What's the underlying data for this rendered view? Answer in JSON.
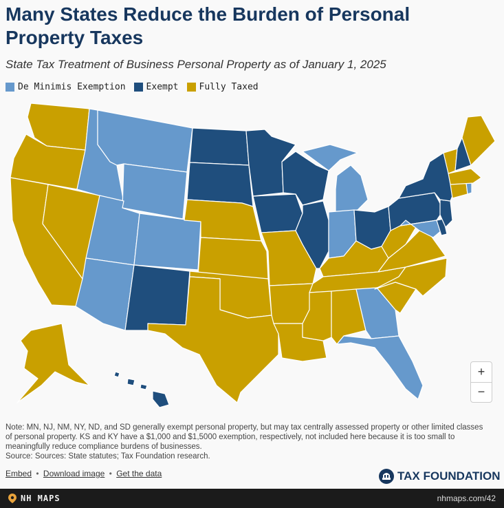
{
  "header": {
    "title": "Many States Reduce the Burden of Personal Property Taxes",
    "subtitle": "State Tax Treatment of Business Personal Property as of January 1, 2025"
  },
  "legend": [
    {
      "label": "De Minimis Exemption",
      "color": "#6699cc"
    },
    {
      "label": "Exempt",
      "color": "#1f4e7d"
    },
    {
      "label": "Fully Taxed",
      "color": "#c9a000"
    }
  ],
  "map_data": {
    "category_colors": {
      "deminimis": "#6699cc",
      "exempt": "#1f4e7d",
      "taxed": "#c9a000"
    },
    "states": {
      "WA": "taxed",
      "OR": "taxed",
      "CA": "taxed",
      "NV": "taxed",
      "ID": "deminimis",
      "MT": "deminimis",
      "WY": "deminimis",
      "UT": "deminimis",
      "AZ": "deminimis",
      "CO": "deminimis",
      "NM": "exempt",
      "ND": "exempt",
      "SD": "exempt",
      "NE": "taxed",
      "KS": "taxed",
      "OK": "taxed",
      "TX": "taxed",
      "MN": "exempt",
      "IA": "exempt",
      "MO": "taxed",
      "AR": "taxed",
      "LA": "taxed",
      "WI": "exempt",
      "IL": "exempt",
      "MI": "deminimis",
      "IN": "deminimis",
      "OH": "exempt",
      "KY": "taxed",
      "TN": "taxed",
      "MS": "taxed",
      "AL": "taxed",
      "GA": "deminimis",
      "FL": "deminimis",
      "SC": "taxed",
      "NC": "taxed",
      "VA": "taxed",
      "WV": "taxed",
      "MD": "deminimis",
      "DE": "exempt",
      "NJ": "exempt",
      "PA": "exempt",
      "NY": "exempt",
      "VT": "taxed",
      "NH": "exempt",
      "ME": "taxed",
      "MA": "taxed",
      "CT": "taxed",
      "RI": "deminimis",
      "AK": "taxed",
      "HI": "exempt"
    }
  },
  "zoom": {
    "in": "+",
    "out": "−"
  },
  "note": {
    "text": "Note: MN, NJ, NM, NY, ND, and SD generally exempt personal property, but may tax centrally assessed property or other limited classes of personal property. KS and KY have a $1,000 and $1,5000 exemption, respectively, not included here because it is too small to meaningfully reduce compliance burdens of businesses.",
    "source": "Source: Sources: State statutes; Tax Foundation research."
  },
  "links": {
    "embed": "Embed",
    "download": "Download image",
    "data": "Get the data",
    "separator": "•"
  },
  "brand": {
    "name": "TAX FOUNDATION"
  },
  "footer": {
    "left": "NH MAPS",
    "right": "nhmaps.com/42"
  }
}
